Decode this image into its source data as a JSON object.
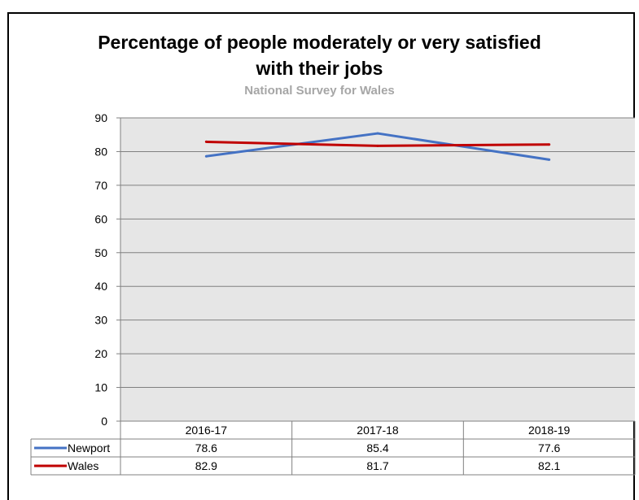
{
  "chart_data": {
    "type": "line",
    "title": "Percentage of people moderately or very satisfied with their jobs",
    "title_lines": [
      "Percentage of people moderately or very satisfied",
      "with their jobs"
    ],
    "subtitle": "National Survey for Wales",
    "categories": [
      "2016-17",
      "2017-18",
      "2018-19"
    ],
    "series": [
      {
        "name": "Newport",
        "values": [
          78.6,
          85.4,
          77.6
        ],
        "labels": [
          "78.6",
          "85.4",
          "77.6"
        ],
        "color": "#4472c4"
      },
      {
        "name": "Wales",
        "values": [
          82.9,
          81.7,
          82.1
        ],
        "labels": [
          "82.9",
          "81.7",
          "82.1"
        ],
        "color": "#c00000"
      }
    ],
    "ylim": [
      0,
      90
    ],
    "yticks": [
      0,
      10,
      20,
      30,
      40,
      50,
      60,
      70,
      80,
      90
    ],
    "grid": true,
    "legend": "data-table"
  }
}
